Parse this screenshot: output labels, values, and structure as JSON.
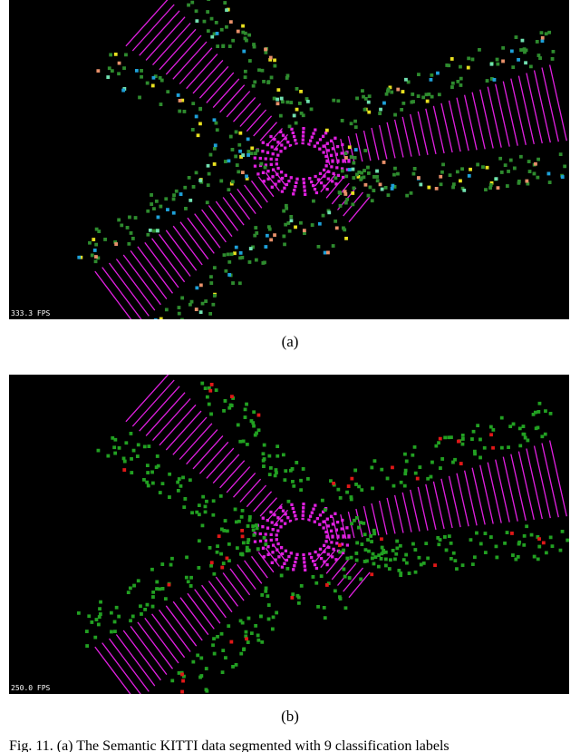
{
  "panels": [
    {
      "fps": "333.3 FPS",
      "label": "(a)"
    },
    {
      "fps": "250.0 FPS",
      "label": "(b)"
    }
  ],
  "caption": "Fig. 11.  (a) The Semantic KITTI data segmented with 9 classification labels"
}
